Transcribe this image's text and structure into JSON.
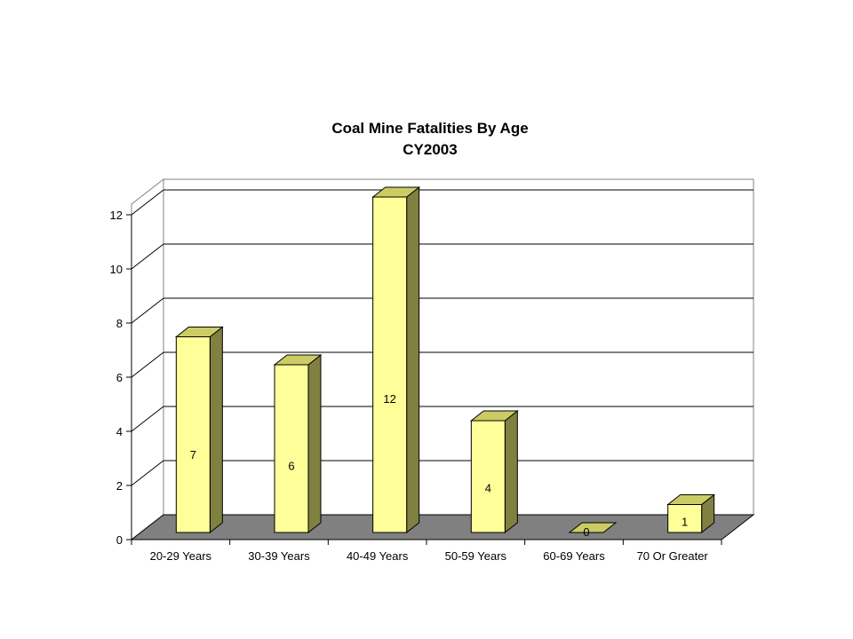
{
  "chart_data": {
    "type": "bar",
    "title": "Coal Mine Fatalities By Age",
    "subtitle": "CY2003",
    "categories": [
      "20-29 Years",
      "30-39 Years",
      "40-49 Years",
      "50-59 Years",
      "60-69 Years",
      "70 Or Greater"
    ],
    "values": [
      7,
      6,
      12,
      4,
      0,
      1
    ],
    "xlabel": "",
    "ylabel": "",
    "ylim": [
      0,
      12
    ],
    "yticks": [
      "0",
      "2",
      "4",
      "6",
      "8",
      "10",
      "12"
    ],
    "grid": true,
    "legend": "none",
    "colors": {
      "bar_front": "#ffff99",
      "bar_top": "#cccc66",
      "bar_side": "#808040",
      "floor": "#808080",
      "outline": "#000000"
    }
  }
}
